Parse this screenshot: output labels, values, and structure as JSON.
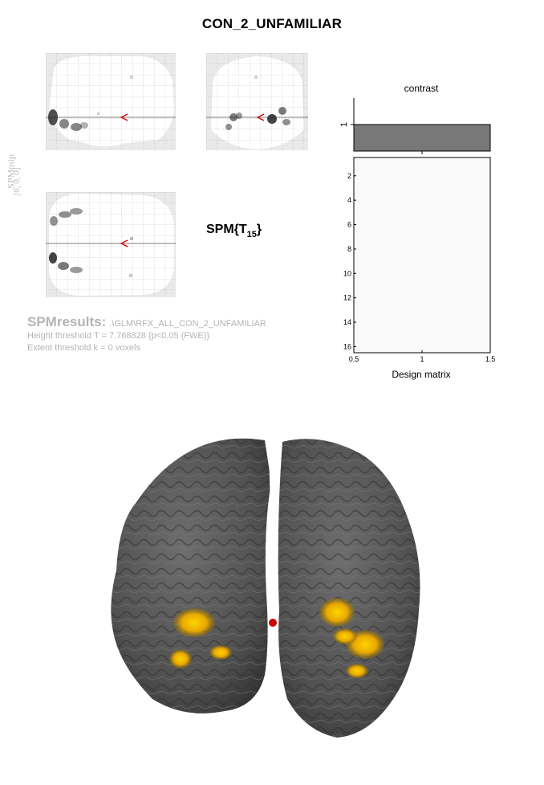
{
  "figure": {
    "title": "CON_2_UNFAMILIAR",
    "stat": {
      "prefix": "SPM{T",
      "df": "15",
      "suffix": "}"
    },
    "mip_label": "SPMmip",
    "mip_coords": "[0, 0, 0]"
  },
  "results": {
    "title": "SPMresults:",
    "path": ".\\GLM\\RFX_ALL_CON_2_UNFAMILIAR",
    "height_threshold": "Height threshold T = 7.768828  {p<0.05 (FWE)}",
    "extent_threshold": "Extent threshold k = 0 voxels"
  },
  "contrast": {
    "title": "contrast",
    "ytick": "1",
    "bar_color": "#787878"
  },
  "design_matrix": {
    "title": "Design matrix",
    "y_ticks": [
      "2",
      "4",
      "6",
      "8",
      "10",
      "12",
      "14",
      "16"
    ],
    "x_ticks": [
      "0.5",
      "1",
      "1.5"
    ],
    "xlim": [
      0.5,
      1.5
    ],
    "ylim": [
      0.5,
      16.5
    ]
  },
  "render": {
    "brain_color": "#5a5a5a",
    "activation_color": "#f0b400",
    "marker_color": "#cc0000"
  }
}
